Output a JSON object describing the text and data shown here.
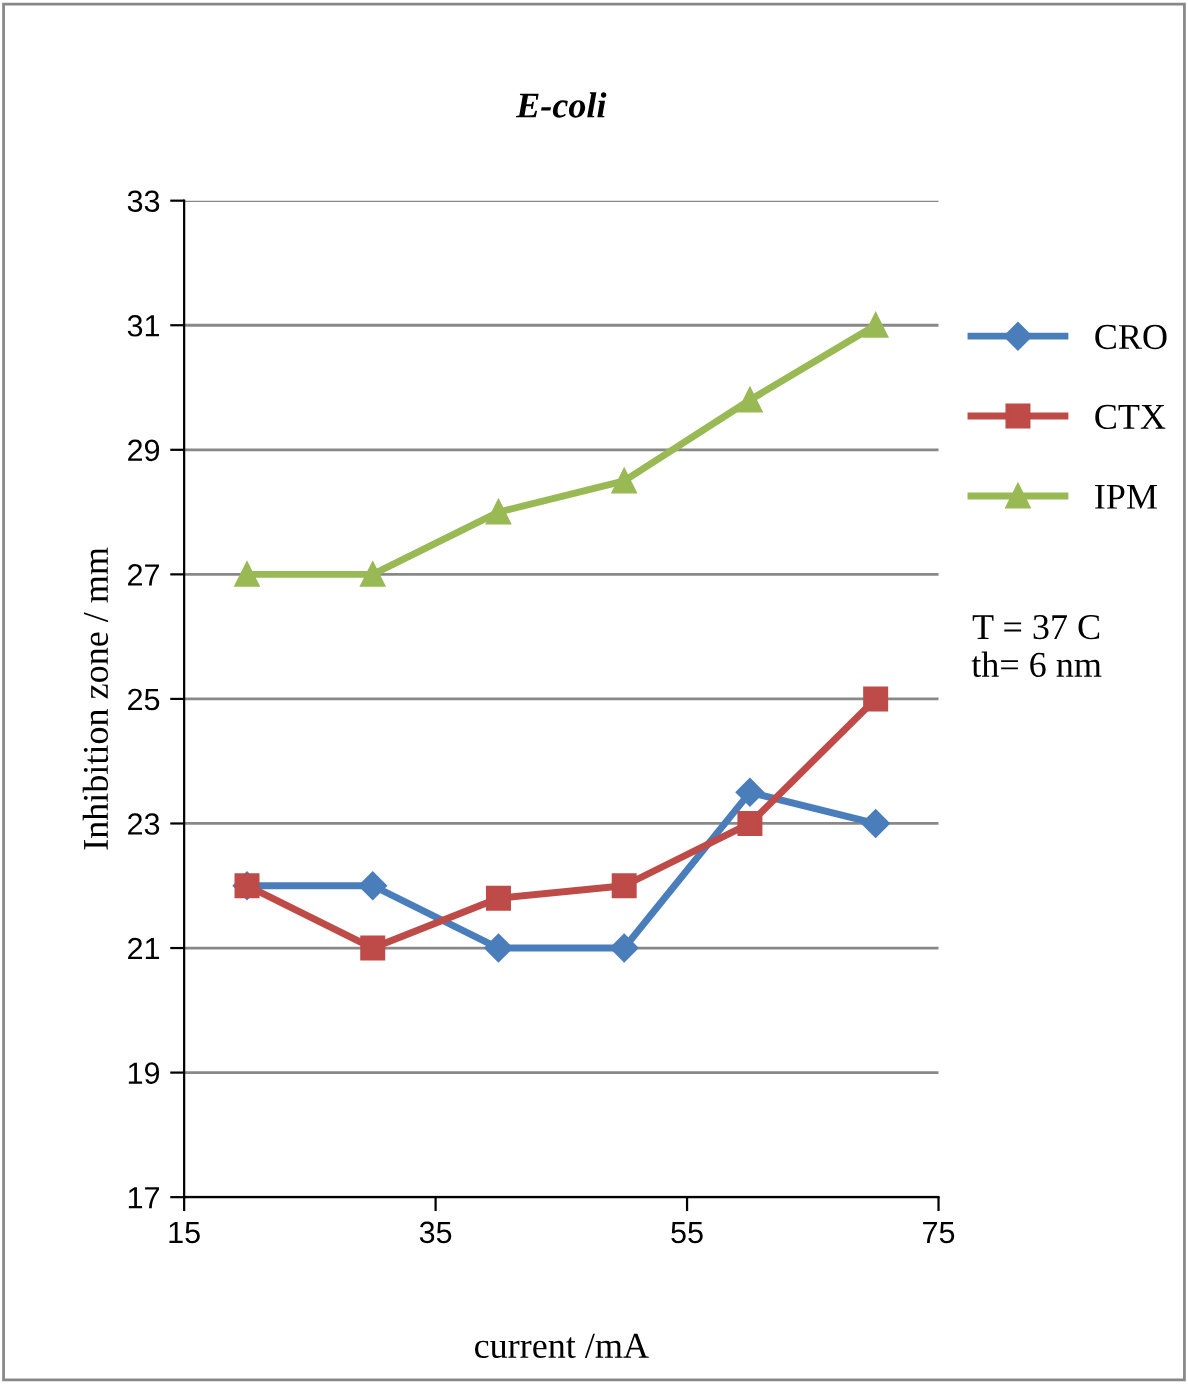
{
  "chart_data": {
    "type": "line",
    "title": "E-coli",
    "xlabel": "current /mA",
    "ylabel": "Inhibition zone / mm",
    "x": [
      20,
      30,
      40,
      50,
      60,
      70
    ],
    "series": [
      {
        "name": "CRO",
        "color": "#4a7ebb",
        "marker": "diamond",
        "values": [
          22,
          22,
          21,
          21,
          23.5,
          23
        ]
      },
      {
        "name": "CTX",
        "color": "#be4b48",
        "marker": "square",
        "values": [
          22,
          21,
          21.8,
          22,
          23,
          25
        ]
      },
      {
        "name": "IPM",
        "color": "#98b954",
        "marker": "triangle",
        "values": [
          27,
          27,
          28,
          28.5,
          29.8,
          31
        ]
      }
    ],
    "xlim": [
      15,
      75
    ],
    "xticks": [
      15,
      35,
      55,
      75
    ],
    "ylim": [
      17,
      33
    ],
    "yticks": [
      17,
      19,
      21,
      23,
      25,
      27,
      29,
      31,
      33
    ],
    "grid": "y",
    "legend": "right",
    "line_style": "solid",
    "annotations": [
      "T = 37 C\nth= 6 nm"
    ]
  }
}
